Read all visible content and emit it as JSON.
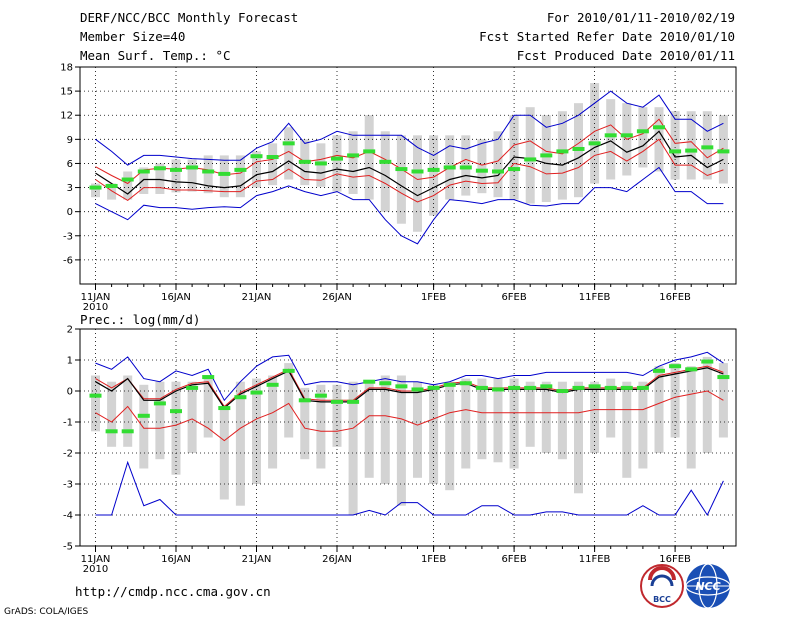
{
  "header": {
    "title": "DERF/NCC/BCC Monthly Forecast",
    "member_size": "Member Size=40",
    "variable": "Mean Surf. Temp.: °C",
    "for_range": "For 2010/01/11-2010/02/19",
    "fcst_started": "Fcst Started Refer Date 2010/01/10",
    "fcst_produced": "Fcst Produced Date 2010/01/11"
  },
  "footer": {
    "url": "http://cmdp.ncc.cma.gov.cn",
    "grads": "GrADS: COLA/IGES",
    "logo_bcc": "BCC",
    "logo_ncc": "NCC"
  },
  "colors": {
    "bar": "#d3d3d3",
    "median": "#000000",
    "inner": "#e02020",
    "outer": "#0000cc",
    "obs": "#33dd33",
    "grid": "#000000"
  },
  "chart_data": [
    {
      "type": "line",
      "name": "temperature",
      "panel_label": "",
      "ylim": [
        -9,
        18
      ],
      "yticks": [
        -6,
        -3,
        0,
        3,
        6,
        9,
        12,
        15,
        18
      ],
      "xticks": [
        {
          "day": 1,
          "label": "11JAN",
          "sub": "2010"
        },
        {
          "day": 6,
          "label": "16JAN",
          "sub": ""
        },
        {
          "day": 11,
          "label": "21JAN",
          "sub": ""
        },
        {
          "day": 16,
          "label": "26JAN",
          "sub": ""
        },
        {
          "day": 22,
          "label": "1FEB",
          "sub": ""
        },
        {
          "day": 27,
          "label": "6FEB",
          "sub": ""
        },
        {
          "day": 32,
          "label": "11FEB",
          "sub": ""
        },
        {
          "day": 37,
          "label": "16FEB",
          "sub": ""
        }
      ],
      "days": [
        1,
        2,
        3,
        4,
        5,
        6,
        7,
        8,
        9,
        10,
        11,
        12,
        13,
        14,
        15,
        16,
        17,
        18,
        19,
        20,
        21,
        22,
        23,
        24,
        25,
        26,
        27,
        28,
        29,
        30,
        31,
        32,
        33,
        34,
        35,
        36,
        37,
        38,
        39,
        40
      ],
      "bar_low": [
        1.8,
        1.5,
        1.5,
        2.2,
        2.2,
        2.4,
        2.5,
        2.3,
        1.8,
        1.8,
        3.0,
        3.3,
        4.0,
        3.3,
        3.1,
        2.5,
        2.2,
        1.5,
        0.0,
        -1.5,
        -2.5,
        -0.5,
        1.5,
        2.0,
        2.3,
        1.8,
        1.5,
        1.0,
        1.2,
        1.5,
        1.8,
        3.5,
        4.0,
        4.5,
        5.5,
        5.0,
        4.0,
        4.0,
        4.0,
        3.5
      ],
      "bar_high": [
        3.5,
        3.5,
        5.0,
        5.5,
        6.0,
        6.5,
        6.5,
        7.0,
        7.0,
        7.0,
        7.5,
        8.5,
        10.5,
        9.0,
        8.5,
        9.5,
        10.0,
        12.0,
        10.0,
        9.5,
        9.5,
        9.5,
        9.5,
        9.5,
        9.0,
        10.0,
        12.0,
        13.0,
        12.0,
        12.5,
        13.5,
        16.0,
        14.0,
        13.5,
        13.0,
        13.0,
        12.5,
        12.5,
        12.5,
        12.0
      ],
      "obs": [
        3.0,
        3.2,
        4.0,
        5.0,
        5.4,
        5.2,
        5.5,
        5.0,
        4.7,
        5.2,
        6.9,
        6.8,
        8.5,
        6.2,
        6.0,
        6.6,
        7.0,
        7.5,
        6.2,
        5.3,
        5.0,
        5.2,
        5.5,
        5.5,
        5.1,
        5.0,
        5.3,
        6.5,
        7.0,
        7.5,
        7.8,
        8.5,
        9.5,
        9.5,
        10.0,
        10.5,
        7.5,
        7.6,
        8.0,
        7.5
      ],
      "series": [
        {
          "name": "upper-extreme",
          "role": "outer",
          "values": [
            9.0,
            7.5,
            5.8,
            7.0,
            7.0,
            6.8,
            6.6,
            6.5,
            6.4,
            6.4,
            7.9,
            8.7,
            11.0,
            8.5,
            9.0,
            10.0,
            9.5,
            9.5,
            9.5,
            9.5,
            8.0,
            7.0,
            8.2,
            7.8,
            8.5,
            9.0,
            12.0,
            12.0,
            10.5,
            11.0,
            12.0,
            13.5,
            15.0,
            13.5,
            13.0,
            14.5,
            11.5,
            11.5,
            10.0,
            11.0
          ]
        },
        {
          "name": "upper-range",
          "role": "inner",
          "values": [
            5.6,
            4.5,
            3.5,
            5.2,
            5.4,
            5.3,
            5.5,
            5.2,
            4.6,
            4.8,
            6.2,
            6.5,
            7.5,
            6.2,
            6.5,
            7.0,
            6.7,
            7.5,
            6.5,
            5.3,
            4.0,
            4.3,
            5.5,
            6.5,
            5.8,
            6.3,
            8.3,
            8.8,
            7.5,
            7.2,
            8.5,
            10.0,
            10.8,
            9.0,
            9.7,
            11.5,
            8.5,
            8.7,
            6.7,
            7.9
          ]
        },
        {
          "name": "median",
          "role": "median",
          "values": [
            4.8,
            3.5,
            2.2,
            4.0,
            4.0,
            3.7,
            3.6,
            3.2,
            3.0,
            3.2,
            4.6,
            5.0,
            6.3,
            5.0,
            4.8,
            5.3,
            5.0,
            5.5,
            4.5,
            3.2,
            2.0,
            3.0,
            4.0,
            4.5,
            4.2,
            4.5,
            6.8,
            6.6,
            6.0,
            5.8,
            6.7,
            8.0,
            8.8,
            7.4,
            8.2,
            10.0,
            6.8,
            7.0,
            5.5,
            6.5
          ]
        },
        {
          "name": "lower-range",
          "role": "inner",
          "values": [
            4.0,
            2.6,
            1.4,
            3.0,
            3.0,
            2.7,
            2.7,
            2.6,
            2.5,
            2.5,
            3.8,
            4.0,
            5.3,
            4.0,
            3.9,
            4.7,
            4.3,
            4.5,
            3.5,
            2.3,
            1.2,
            2.0,
            3.3,
            3.8,
            3.5,
            3.6,
            6.0,
            5.6,
            4.7,
            4.8,
            5.5,
            7.0,
            7.5,
            6.3,
            7.5,
            9.0,
            5.8,
            5.8,
            4.5,
            5.2
          ]
        },
        {
          "name": "lower-extreme",
          "role": "outer",
          "values": [
            1.0,
            0.0,
            -1.0,
            0.8,
            0.5,
            0.5,
            0.3,
            0.5,
            0.6,
            0.5,
            2.0,
            2.5,
            3.2,
            2.5,
            2.0,
            2.5,
            1.5,
            1.5,
            -1.0,
            -3.0,
            -4.0,
            -1.0,
            1.5,
            1.3,
            1.0,
            1.5,
            1.5,
            0.8,
            0.7,
            1.0,
            1.0,
            3.0,
            3.0,
            2.5,
            4.0,
            5.5,
            2.5,
            2.5,
            1.0,
            1.0
          ]
        }
      ]
    },
    {
      "type": "line",
      "name": "precipitation",
      "panel_label": "Prec.: log(mm/d)",
      "ylim": [
        -5,
        2
      ],
      "yticks": [
        -5,
        -4,
        -3,
        -2,
        -1,
        0,
        1,
        2
      ],
      "xticks": [
        {
          "day": 1,
          "label": "11JAN",
          "sub": "2010"
        },
        {
          "day": 6,
          "label": "16JAN",
          "sub": ""
        },
        {
          "day": 11,
          "label": "21JAN",
          "sub": ""
        },
        {
          "day": 16,
          "label": "26JAN",
          "sub": ""
        },
        {
          "day": 22,
          "label": "1FEB",
          "sub": ""
        },
        {
          "day": 27,
          "label": "6FEB",
          "sub": ""
        },
        {
          "day": 32,
          "label": "11FEB",
          "sub": ""
        },
        {
          "day": 37,
          "label": "16FEB",
          "sub": ""
        }
      ],
      "days": [
        1,
        2,
        3,
        4,
        5,
        6,
        7,
        8,
        9,
        10,
        11,
        12,
        13,
        14,
        15,
        16,
        17,
        18,
        19,
        20,
        21,
        22,
        23,
        24,
        25,
        26,
        27,
        28,
        29,
        30,
        31,
        32,
        33,
        34,
        35,
        36,
        37,
        38,
        39,
        40
      ],
      "bar_low": [
        -1.3,
        -1.8,
        -1.8,
        -2.5,
        -2.2,
        -2.7,
        -2.0,
        -1.5,
        -3.5,
        -3.7,
        -3.0,
        -2.5,
        -1.5,
        -2.2,
        -2.5,
        -1.8,
        -4.0,
        -2.8,
        -3.0,
        -3.7,
        -2.8,
        -3.0,
        -3.2,
        -2.5,
        -2.2,
        -2.3,
        -2.5,
        -1.8,
        -2.0,
        -2.2,
        -3.3,
        -2.0,
        -1.5,
        -2.8,
        -2.5,
        -2.0,
        -1.5,
        -2.5,
        -2.0,
        -1.5
      ],
      "bar_high": [
        0.5,
        0.3,
        0.5,
        0.2,
        0.3,
        0.3,
        0.3,
        0.5,
        -0.5,
        0.3,
        0.4,
        0.5,
        0.9,
        0.1,
        0.2,
        0.2,
        0.3,
        0.3,
        0.5,
        0.5,
        0.3,
        0.2,
        0.3,
        0.4,
        0.4,
        0.4,
        0.4,
        0.3,
        0.3,
        0.3,
        0.3,
        0.3,
        0.4,
        0.3,
        0.3,
        0.8,
        0.9,
        0.8,
        1.1,
        0.9
      ],
      "obs": [
        -0.15,
        -1.3,
        -1.3,
        -0.8,
        -0.4,
        -0.65,
        0.1,
        0.45,
        -0.55,
        -0.2,
        -0.05,
        0.2,
        0.65,
        -0.3,
        -0.15,
        -0.35,
        -0.35,
        0.3,
        0.25,
        0.15,
        0.05,
        0.1,
        0.2,
        0.25,
        0.1,
        0.05,
        0.1,
        0.1,
        0.15,
        0.0,
        0.1,
        0.15,
        0.1,
        0.1,
        0.1,
        0.65,
        0.8,
        0.7,
        0.95,
        0.45
      ],
      "series": [
        {
          "name": "upper-extreme",
          "role": "outer",
          "values": [
            0.9,
            0.7,
            1.1,
            0.4,
            0.3,
            0.65,
            0.5,
            0.7,
            -0.3,
            0.3,
            0.8,
            1.1,
            1.15,
            0.2,
            0.3,
            0.3,
            0.2,
            0.3,
            0.4,
            0.3,
            0.3,
            0.2,
            0.3,
            0.5,
            0.5,
            0.4,
            0.5,
            0.5,
            0.6,
            0.6,
            0.6,
            0.6,
            0.6,
            0.6,
            0.5,
            0.8,
            1.0,
            1.1,
            1.25,
            0.9
          ]
        },
        {
          "name": "upper-range",
          "role": "inner",
          "values": [
            0.4,
            0.1,
            0.4,
            -0.25,
            -0.25,
            0.05,
            0.25,
            0.3,
            -0.5,
            -0.05,
            0.2,
            0.45,
            0.7,
            -0.25,
            -0.3,
            -0.3,
            -0.3,
            0.1,
            0.1,
            0.0,
            0.0,
            0.1,
            0.25,
            0.3,
            0.1,
            0.1,
            0.1,
            0.1,
            0.1,
            0.0,
            0.1,
            0.1,
            0.1,
            0.1,
            0.1,
            0.5,
            0.6,
            0.7,
            0.8,
            0.6
          ]
        },
        {
          "name": "median",
          "role": "median",
          "values": [
            0.3,
            0.0,
            0.4,
            -0.3,
            -0.3,
            0.0,
            0.2,
            0.25,
            -0.55,
            -0.1,
            0.15,
            0.4,
            0.65,
            -0.3,
            -0.35,
            -0.35,
            -0.35,
            0.05,
            0.05,
            -0.05,
            -0.05,
            0.05,
            0.2,
            0.25,
            0.05,
            0.05,
            0.05,
            0.05,
            0.05,
            -0.05,
            0.05,
            0.05,
            0.05,
            0.05,
            0.05,
            0.45,
            0.55,
            0.65,
            0.75,
            0.55
          ]
        },
        {
          "name": "lower-range",
          "role": "inner",
          "values": [
            -0.7,
            -1.0,
            -0.5,
            -1.2,
            -1.2,
            -1.1,
            -0.9,
            -1.2,
            -1.6,
            -1.2,
            -0.9,
            -0.7,
            -0.4,
            -1.2,
            -1.3,
            -1.3,
            -1.2,
            -0.8,
            -0.8,
            -0.9,
            -1.1,
            -0.9,
            -0.7,
            -0.6,
            -0.7,
            -0.7,
            -0.7,
            -0.7,
            -0.7,
            -0.7,
            -0.7,
            -0.6,
            -0.6,
            -0.6,
            -0.6,
            -0.4,
            -0.2,
            -0.1,
            0.0,
            -0.3
          ]
        },
        {
          "name": "lower-extreme",
          "role": "outer",
          "values": [
            -4.0,
            -4.0,
            -2.3,
            -3.7,
            -3.5,
            -4.0,
            -4.0,
            -4.0,
            -4.0,
            -4.0,
            -4.0,
            -4.0,
            -4.0,
            -4.0,
            -4.0,
            -4.0,
            -4.0,
            -3.85,
            -4.0,
            -3.6,
            -3.6,
            -4.0,
            -4.0,
            -4.0,
            -3.7,
            -3.7,
            -4.0,
            -4.0,
            -3.9,
            -3.9,
            -4.0,
            -4.0,
            -4.0,
            -4.0,
            -3.7,
            -4.0,
            -4.0,
            -3.2,
            -4.0,
            -2.9
          ]
        }
      ]
    }
  ]
}
